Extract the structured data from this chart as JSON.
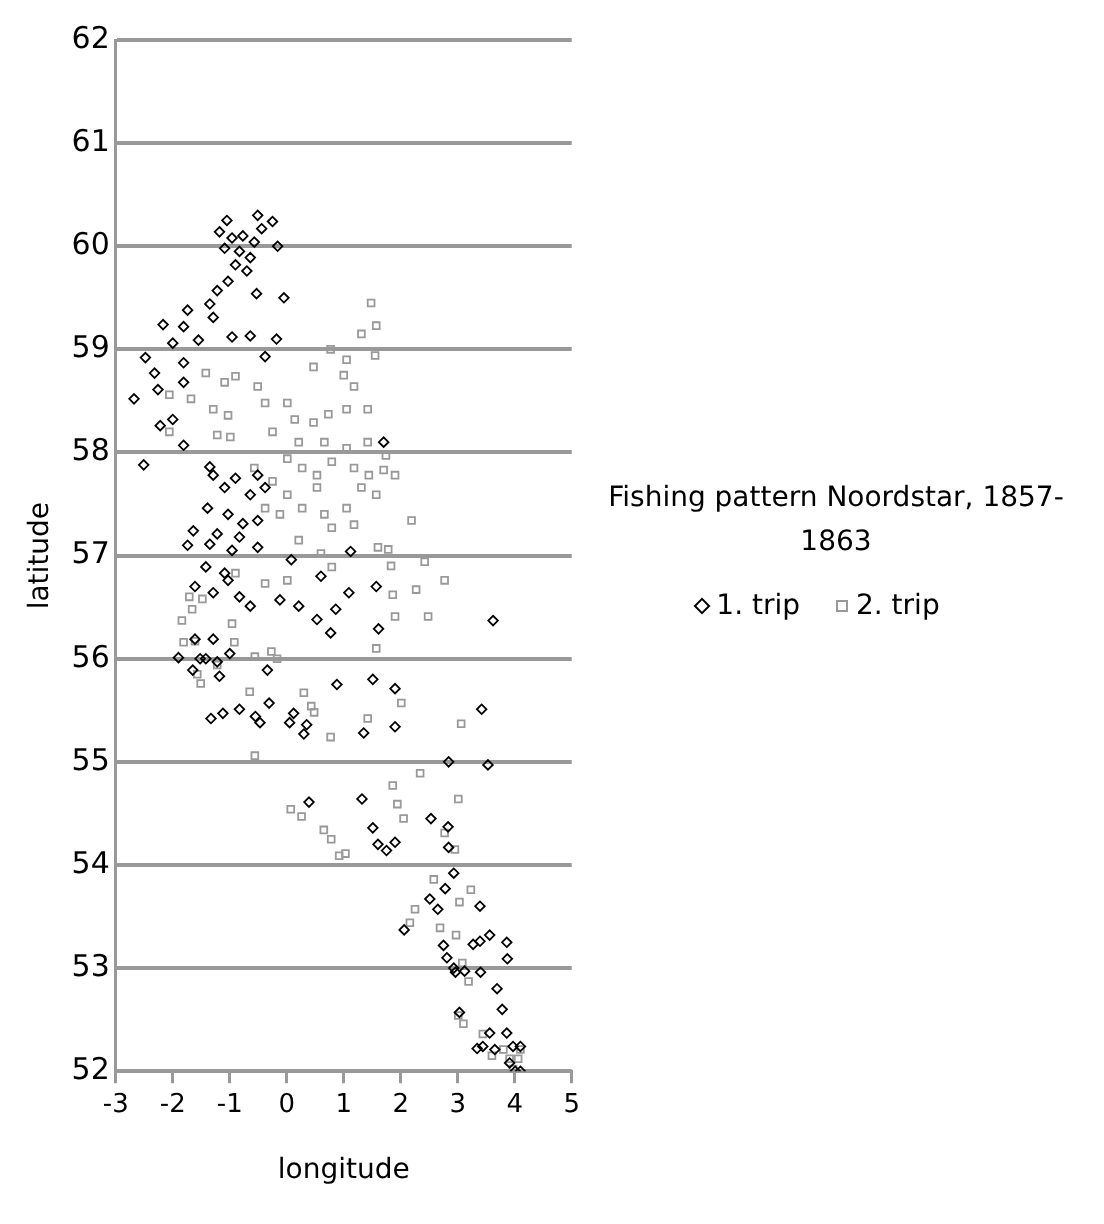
{
  "chart_data": {
    "type": "scatter",
    "title": "Fishing pattern Noordstar, 1857-1863",
    "xlabel": "longitude",
    "ylabel": "latitude",
    "legend": "right",
    "grid": "y",
    "xlim": [
      -3,
      5
    ],
    "ylim": [
      52,
      62
    ],
    "xticks": [
      -3,
      -2,
      -1,
      0,
      1,
      2,
      3,
      4,
      5
    ],
    "yticks": [
      52,
      53,
      54,
      55,
      56,
      57,
      58,
      59,
      60,
      61,
      62
    ],
    "series": [
      {
        "name": "1. trip",
        "color": "#000000",
        "marker": "diamond",
        "x": [
          -1.05,
          -0.51,
          -0.25,
          -1.18,
          -0.96,
          -0.77,
          -0.57,
          -0.83,
          -1.09,
          -0.64,
          -0.9,
          -0.7,
          -1.03,
          -0.44,
          -0.16,
          -0.53,
          -1.22,
          -1.35,
          -1.74,
          -1.29,
          -2.17,
          -1.81,
          -2.0,
          -1.55,
          -0.96,
          -0.64,
          -0.18,
          -2.48,
          -2.32,
          -1.81,
          -2.68,
          -2.26,
          -1.81,
          -2.0,
          -2.22,
          -1.81,
          -2.51,
          -1.35,
          -1.29,
          -0.9,
          -0.51,
          -1.09,
          -0.64,
          -0.38,
          -1.39,
          -1.03,
          -0.77,
          -0.51,
          -1.64,
          -1.22,
          -0.83,
          -1.74,
          -1.35,
          -0.96,
          -0.51,
          -1.42,
          -1.09,
          -1.03,
          -1.29,
          -1.61,
          -0.83,
          -0.64,
          -0.12,
          0.21,
          0.6,
          0.86,
          0.53,
          0.77,
          1.09,
          1.57,
          1.61,
          3.62,
          1.7,
          -0.38,
          -0.05,
          0.08,
          1.12,
          -1.61,
          -1.29,
          -1.9,
          -1.42,
          -1.52,
          -1.22,
          -1.0,
          -1.65,
          -1.18,
          -0.34,
          -1.33,
          -1.12,
          -0.83,
          -0.55,
          -0.47,
          -0.31,
          0.05,
          0.12,
          0.3,
          0.35,
          0.88,
          1.51,
          1.35,
          1.9,
          1.9,
          3.42,
          2.84,
          3.53,
          1.32,
          0.39,
          1.51,
          1.6,
          1.75,
          1.9,
          2.53,
          2.83,
          2.84,
          2.93,
          2.51,
          2.78,
          2.65,
          2.06,
          2.75,
          2.81,
          2.93,
          2.96,
          3.12,
          3.27,
          3.39,
          3.56,
          3.39,
          3.86,
          3.87,
          3.4,
          3.69,
          3.78,
          3.03,
          3.56,
          3.86,
          3.44,
          3.65,
          3.97,
          4.1,
          3.91,
          4.01,
          4.1,
          3.34
        ],
        "values": [
          60.25,
          60.3,
          60.24,
          60.14,
          60.08,
          60.1,
          60.04,
          59.95,
          59.98,
          59.89,
          59.82,
          59.76,
          59.66,
          60.17,
          60.0,
          59.54,
          59.57,
          59.44,
          59.38,
          59.31,
          59.24,
          59.22,
          59.06,
          59.09,
          59.12,
          59.13,
          59.1,
          58.92,
          58.77,
          58.87,
          58.52,
          58.61,
          58.68,
          58.32,
          58.26,
          58.07,
          57.88,
          57.86,
          57.78,
          57.75,
          57.78,
          57.66,
          57.59,
          57.66,
          57.46,
          57.4,
          57.31,
          57.34,
          57.24,
          57.21,
          57.18,
          57.1,
          57.11,
          57.05,
          57.08,
          56.89,
          56.83,
          56.76,
          56.64,
          56.7,
          56.6,
          56.51,
          56.57,
          56.51,
          56.8,
          56.48,
          56.38,
          56.25,
          56.64,
          56.7,
          56.29,
          56.37,
          58.1,
          58.93,
          59.5,
          56.96,
          57.04,
          56.19,
          56.19,
          56.01,
          56.0,
          56.0,
          55.97,
          56.05,
          55.89,
          55.83,
          55.89,
          55.42,
          55.47,
          55.51,
          55.44,
          55.38,
          55.57,
          55.38,
          55.47,
          55.27,
          55.36,
          55.75,
          55.8,
          55.28,
          55.71,
          55.34,
          55.51,
          55.0,
          54.97,
          54.64,
          54.61,
          54.36,
          54.2,
          54.14,
          54.22,
          54.45,
          54.37,
          54.17,
          53.92,
          53.67,
          53.77,
          53.57,
          53.37,
          53.22,
          53.1,
          53.0,
          52.96,
          52.97,
          53.23,
          53.26,
          53.32,
          53.6,
          53.25,
          53.09,
          52.96,
          52.8,
          52.6,
          52.57,
          52.37,
          52.37,
          52.24,
          52.21,
          52.24,
          52.24,
          52.08,
          52.0,
          52.0,
          52.22
        ]
      },
      {
        "name": "2. trip",
        "color": "#999999",
        "marker": "square",
        "x": [
          1.48,
          1.57,
          1.31,
          0.77,
          1.05,
          1.55,
          0.47,
          1.0,
          1.18,
          -1.42,
          -2.06,
          -1.68,
          -1.09,
          -0.9,
          -0.51,
          -1.29,
          -1.03,
          -2.06,
          -1.22,
          -0.99,
          -0.38,
          0.01,
          0.14,
          0.47,
          0.73,
          1.05,
          1.42,
          -0.25,
          0.21,
          0.66,
          1.05,
          1.42,
          1.74,
          0.01,
          0.27,
          0.53,
          0.79,
          1.18,
          1.44,
          1.7,
          1.9,
          1.31,
          1.57,
          -0.25,
          0.01,
          0.27,
          0.53,
          -0.38,
          -0.57,
          -0.12,
          0.66,
          1.05,
          0.79,
          1.18,
          2.19,
          0.21,
          0.6,
          0.79,
          1.6,
          1.78,
          1.83,
          2.42,
          2.77,
          2.27,
          1.86,
          1.9,
          2.48,
          1.57,
          -0.38,
          0.01,
          -0.9,
          -1.71,
          -1.48,
          -1.66,
          -1.84,
          -1.61,
          -0.96,
          -0.92,
          -1.22,
          -0.56,
          -0.27,
          -1.81,
          -1.57,
          -1.51,
          -0.65,
          -0.17,
          0.3,
          0.43,
          0.48,
          0.77,
          -0.56,
          1.42,
          2.01,
          3.06,
          2.34,
          1.86,
          1.94,
          2.05,
          0.07,
          0.26,
          0.65,
          0.78,
          0.92,
          1.03,
          2.77,
          2.95,
          3.01,
          2.58,
          3.23,
          2.25,
          3.03,
          2.16,
          2.69,
          2.97,
          3.08,
          3.19,
          3.01,
          3.1,
          3.44,
          3.6,
          3.8,
          3.91,
          4.1,
          3.97,
          4.06
        ],
        "values": [
          59.45,
          59.23,
          59.15,
          59.0,
          58.9,
          58.94,
          58.83,
          58.75,
          58.64,
          58.77,
          58.56,
          58.52,
          58.68,
          58.74,
          58.64,
          58.42,
          58.36,
          58.2,
          58.17,
          58.15,
          58.48,
          58.48,
          58.32,
          58.29,
          58.37,
          58.42,
          58.42,
          58.2,
          58.1,
          58.1,
          58.04,
          58.1,
          57.97,
          57.94,
          57.85,
          57.78,
          57.91,
          57.85,
          57.78,
          57.83,
          57.78,
          57.66,
          57.59,
          57.72,
          57.59,
          57.46,
          57.66,
          57.46,
          57.85,
          57.4,
          57.4,
          57.46,
          57.27,
          57.3,
          57.34,
          57.15,
          57.02,
          56.89,
          57.08,
          57.06,
          56.9,
          56.94,
          56.76,
          56.67,
          56.62,
          56.41,
          56.41,
          56.1,
          56.73,
          56.76,
          56.83,
          56.6,
          56.58,
          56.48,
          56.37,
          56.17,
          56.34,
          56.16,
          55.94,
          56.02,
          56.07,
          56.16,
          55.85,
          55.76,
          55.68,
          56.0,
          55.67,
          55.54,
          55.48,
          55.24,
          55.06,
          55.42,
          55.57,
          55.37,
          54.89,
          54.77,
          54.59,
          54.45,
          54.54,
          54.47,
          54.34,
          54.25,
          54.09,
          54.11,
          54.31,
          54.15,
          54.64,
          53.86,
          53.76,
          53.57,
          53.64,
          53.44,
          53.39,
          53.32,
          53.05,
          52.87,
          52.54,
          52.46,
          52.36,
          52.15,
          52.21,
          52.12,
          52.21,
          52.02,
          52.12
        ]
      }
    ]
  }
}
